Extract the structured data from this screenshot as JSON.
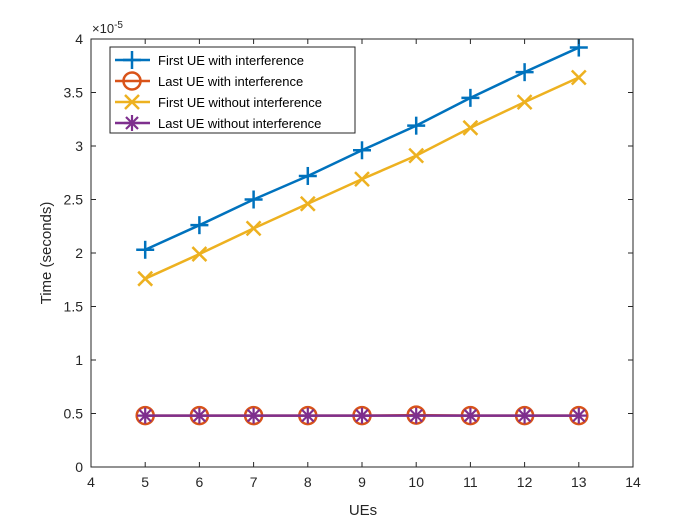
{
  "chart_data": {
    "type": "line",
    "xlabel": "UEs",
    "ylabel": "Time (seconds)",
    "xlim": [
      4,
      14
    ],
    "ylim": [
      0,
      4
    ],
    "y_scale_note": "×10",
    "y_scale_exponent": "-5",
    "xticks": [
      "4",
      "5",
      "6",
      "7",
      "8",
      "9",
      "10",
      "11",
      "12",
      "13",
      "14"
    ],
    "yticks": [
      "0",
      "0.5",
      "1",
      "1.5",
      "2",
      "2.5",
      "3",
      "3.5",
      "4"
    ],
    "grid": false,
    "legend_position": "top-left",
    "x": [
      5,
      6,
      7,
      8,
      9,
      10,
      11,
      12,
      13
    ],
    "series": [
      {
        "name": "First UE with interference",
        "color": "#0072BD",
        "marker": "plus-icon",
        "values": [
          2.03,
          2.26,
          2.5,
          2.72,
          2.96,
          3.19,
          3.45,
          3.69,
          3.92
        ]
      },
      {
        "name": "Last UE with interference",
        "color": "#D95319",
        "marker": "circle-icon",
        "values": [
          0.48,
          0.48,
          0.48,
          0.48,
          0.48,
          0.485,
          0.48,
          0.48,
          0.48
        ]
      },
      {
        "name": "First UE without interference",
        "color": "#EDB120",
        "marker": "x-icon",
        "values": [
          1.76,
          1.99,
          2.23,
          2.46,
          2.69,
          2.91,
          3.17,
          3.41,
          3.64
        ]
      },
      {
        "name": "Last UE without interference",
        "color": "#7E2F8E",
        "marker": "asterisk-icon",
        "values": [
          0.48,
          0.48,
          0.48,
          0.48,
          0.48,
          0.48,
          0.48,
          0.48,
          0.48
        ]
      }
    ]
  }
}
